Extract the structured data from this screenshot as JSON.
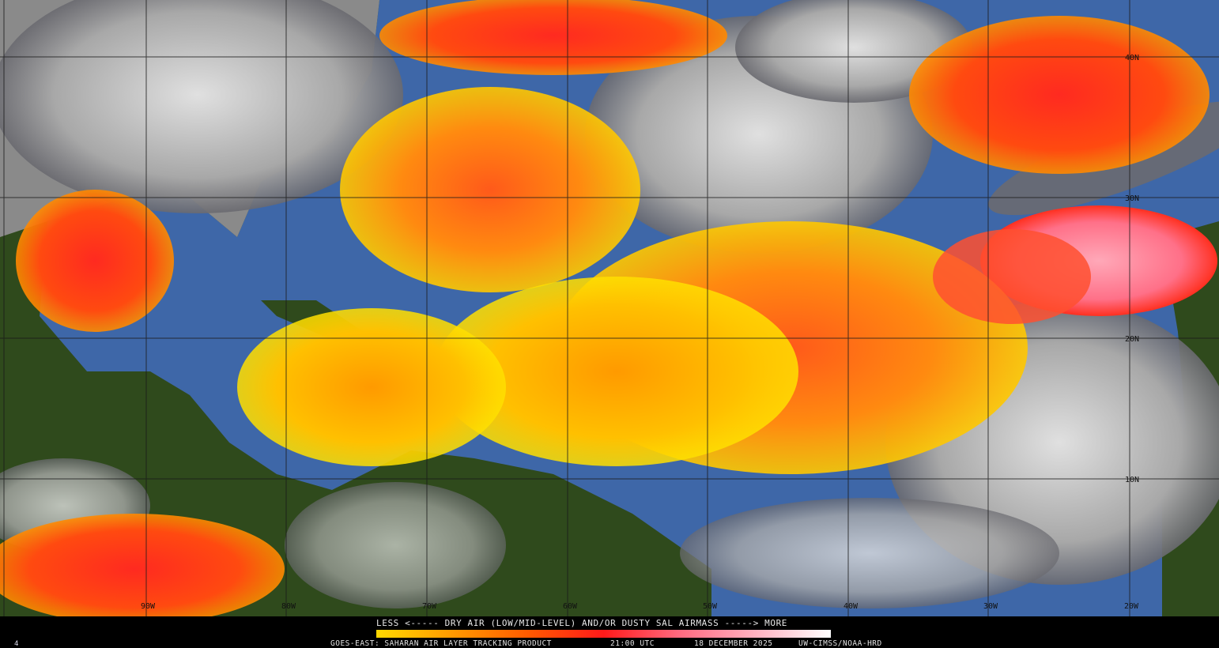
{
  "product": {
    "legend_title": "LESS <----- DRY AIR (LOW/MID-LEVEL) AND/OR DUSTY SAL AIRMASS -----> MORE",
    "legend_colors": [
      "#ffd800",
      "#ff9a00",
      "#ff5a00",
      "#ff1a1a",
      "#ff6a80",
      "#ffb0c0",
      "#ffffff"
    ],
    "satellite_product": "GOES-EAST: SAHARAN AIR LAYER TRACKING PRODUCT",
    "time": "21:00 UTC",
    "date": "18 DECEMBER 2025",
    "credit": "UW-CIMSS/NOAA-HRD",
    "frame_number": "4"
  },
  "map": {
    "longitude_labels": [
      "90W",
      "80W",
      "70W",
      "60W",
      "50W",
      "40W",
      "30W",
      "20W"
    ],
    "latitude_labels": [
      "40N",
      "30N",
      "20N",
      "10N"
    ],
    "colors": {
      "ocean": "#3e67a8",
      "land": "#2f4a1c",
      "cloud": "#b4b4b4",
      "grid": "#1a1a1a"
    }
  }
}
